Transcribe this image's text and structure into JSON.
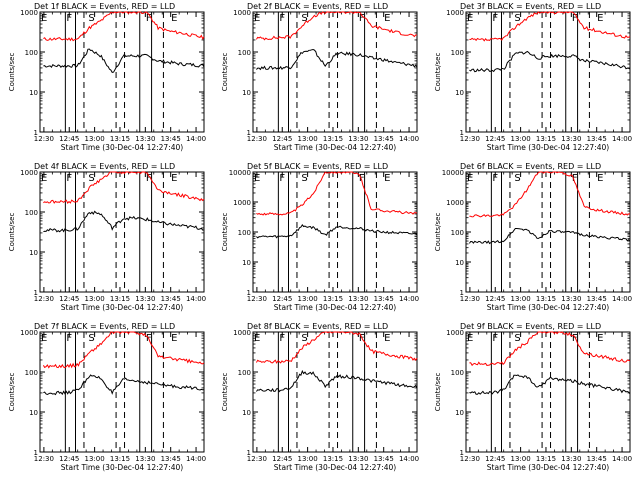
{
  "chart_data": {
    "type": "line",
    "y_scale": "log",
    "ylim": [
      1,
      1000
    ],
    "yticks": [
      1,
      10,
      100,
      1000
    ],
    "ytick_labels": [
      "1",
      "10",
      "100",
      "1000"
    ],
    "xlabel": "Start Time (30-Dec-04 12:27:40)",
    "ylabel": "Counts/sec",
    "xticks": [
      "12:30",
      "12:45",
      "13:00",
      "13:15",
      "13:30",
      "13:45",
      "14:00"
    ],
    "xlim_minutes": [
      0,
      97
    ],
    "colors": {
      "events": "#000000",
      "lld": "#ff0000"
    },
    "panels": [
      {
        "title": "Det 1f BLACK = Events, RED = LLD",
        "ymax": 1000,
        "events": [
          45,
          45,
          45,
          45,
          120,
          80,
          30,
          80,
          80,
          80,
          60,
          55,
          50,
          48,
          45
        ],
        "lld": [
          210,
          210,
          210,
          210,
          400,
          600,
          1000,
          1000,
          1000,
          1000,
          400,
          330,
          300,
          260,
          230
        ],
        "markers": [
          {
            "label": "E",
            "x": 0
          },
          {
            "label": "F",
            "x": 15
          },
          {
            "label": "S",
            "x": 28
          },
          {
            "label": "F",
            "x": 62
          },
          {
            "label": "E",
            "x": 77
          }
        ],
        "solid_lines": [
          15,
          21,
          59,
          66
        ],
        "dashed_lines": [
          26,
          45,
          50,
          73
        ]
      },
      {
        "title": "Det 2f BLACK = Events, RED = LLD",
        "ymax": 1000,
        "events": [
          40,
          40,
          40,
          42,
          100,
          110,
          45,
          90,
          90,
          85,
          70,
          65,
          55,
          50,
          45
        ],
        "lld": [
          220,
          220,
          230,
          240,
          450,
          800,
          1000,
          1000,
          1000,
          1000,
          450,
          380,
          320,
          280,
          250
        ],
        "markers": [
          {
            "label": "E",
            "x": 0
          },
          {
            "label": "F",
            "x": 15
          },
          {
            "label": "S",
            "x": 28
          },
          {
            "label": "F",
            "x": 62
          },
          {
            "label": "E",
            "x": 77
          }
        ],
        "solid_lines": [
          15,
          21,
          59,
          66
        ],
        "dashed_lines": [
          26,
          45,
          50,
          73
        ]
      },
      {
        "title": "Det 3f BLACK = Events, RED = LLD",
        "ymax": 1000,
        "events": [
          35,
          35,
          35,
          38,
          90,
          100,
          70,
          80,
          80,
          80,
          60,
          55,
          50,
          45,
          40
        ],
        "lld": [
          200,
          200,
          200,
          220,
          420,
          700,
          1000,
          1000,
          1000,
          1000,
          400,
          350,
          300,
          260,
          230
        ],
        "markers": [
          {
            "label": "E",
            "x": 0
          },
          {
            "label": "F",
            "x": 15
          },
          {
            "label": "S",
            "x": 28
          },
          {
            "label": "F",
            "x": 62
          },
          {
            "label": "E",
            "x": 77
          }
        ],
        "solid_lines": [
          15,
          21,
          59,
          66
        ],
        "dashed_lines": [
          26,
          45,
          50,
          73
        ]
      },
      {
        "title": "Det 4f BLACK = Events, RED = LLD",
        "ymax": 1000,
        "events": [
          35,
          35,
          35,
          38,
          100,
          90,
          40,
          70,
          70,
          65,
          55,
          50,
          45,
          42,
          38
        ],
        "lld": [
          180,
          180,
          180,
          190,
          400,
          650,
          1000,
          1000,
          1000,
          1000,
          350,
          300,
          260,
          230,
          200
        ],
        "markers": [
          {
            "label": "E",
            "x": 0
          },
          {
            "label": "F",
            "x": 15
          },
          {
            "label": "S",
            "x": 28
          },
          {
            "label": "F",
            "x": 62
          },
          {
            "label": "E",
            "x": 77
          }
        ],
        "solid_lines": [
          15,
          21,
          59,
          66
        ],
        "dashed_lines": [
          26,
          45,
          50,
          73
        ]
      },
      {
        "title": "Det 5f BLACK = Events, RED = LLD",
        "ymax": 10000,
        "events": [
          70,
          70,
          70,
          75,
          160,
          140,
          80,
          150,
          140,
          130,
          110,
          100,
          95,
          90,
          85
        ],
        "lld": [
          400,
          400,
          400,
          420,
          800,
          2000,
          10000,
          10000,
          10000,
          8000,
          600,
          520,
          480,
          440,
          400
        ],
        "markers": [
          {
            "label": "E",
            "x": 0
          },
          {
            "label": "F",
            "x": 15
          },
          {
            "label": "S",
            "x": 28
          },
          {
            "label": "F",
            "x": 62
          },
          {
            "label": "E",
            "x": 77
          }
        ],
        "solid_lines": [
          15,
          21,
          59,
          66
        ],
        "dashed_lines": [
          26,
          45,
          50,
          73
        ]
      },
      {
        "title": "Det 6f BLACK = Events, RED = LLD",
        "ymax": 10000,
        "events": [
          45,
          45,
          45,
          50,
          130,
          120,
          60,
          110,
          100,
          95,
          80,
          70,
          65,
          60,
          55
        ],
        "lld": [
          350,
          350,
          350,
          380,
          800,
          2500,
          10000,
          10000,
          10000,
          7000,
          700,
          550,
          480,
          430,
          380
        ],
        "markers": [
          {
            "label": "E",
            "x": 0
          },
          {
            "label": "F",
            "x": 15
          },
          {
            "label": "S",
            "x": 28
          },
          {
            "label": "F",
            "x": 62
          },
          {
            "label": "E",
            "x": 77
          }
        ],
        "solid_lines": [
          15,
          21,
          59,
          66
        ],
        "dashed_lines": [
          26,
          45,
          50,
          73
        ]
      },
      {
        "title": "Det 7f BLACK = Events, RED = LLD",
        "ymax": 1000,
        "events": [
          30,
          30,
          30,
          35,
          80,
          70,
          30,
          65,
          60,
          55,
          50,
          45,
          42,
          40,
          38
        ],
        "lld": [
          140,
          140,
          140,
          150,
          300,
          500,
          1000,
          1000,
          1000,
          800,
          250,
          220,
          200,
          180,
          160
        ],
        "markers": [
          {
            "label": "E",
            "x": 0
          },
          {
            "label": "F",
            "x": 15
          },
          {
            "label": "S",
            "x": 28
          },
          {
            "label": "F",
            "x": 62
          },
          {
            "label": "E",
            "x": 77
          }
        ],
        "solid_lines": [
          15,
          21,
          59,
          66
        ],
        "dashed_lines": [
          26,
          45,
          50,
          73
        ]
      },
      {
        "title": "Det 8f BLACK = Events, RED = LLD",
        "ymax": 1000,
        "events": [
          35,
          35,
          35,
          40,
          100,
          90,
          45,
          80,
          75,
          70,
          60,
          55,
          50,
          45,
          42
        ],
        "lld": [
          180,
          180,
          180,
          190,
          400,
          650,
          1000,
          1000,
          1000,
          900,
          330,
          290,
          260,
          230,
          210
        ],
        "markers": [
          {
            "label": "E",
            "x": 0
          },
          {
            "label": "F",
            "x": 15
          },
          {
            "label": "S",
            "x": 28
          },
          {
            "label": "F",
            "x": 62
          },
          {
            "label": "E",
            "x": 77
          }
        ],
        "solid_lines": [
          15,
          21,
          59,
          66
        ],
        "dashed_lines": [
          26,
          45,
          50,
          73
        ]
      },
      {
        "title": "Det 9f BLACK = Events, RED = LLD",
        "ymax": 1000,
        "events": [
          30,
          30,
          30,
          35,
          85,
          75,
          40,
          70,
          65,
          60,
          50,
          45,
          40,
          35,
          30
        ],
        "lld": [
          160,
          160,
          160,
          170,
          350,
          550,
          1000,
          1000,
          1000,
          850,
          300,
          260,
          230,
          200,
          180
        ],
        "markers": [
          {
            "label": "E",
            "x": 0
          },
          {
            "label": "F",
            "x": 15
          },
          {
            "label": "S",
            "x": 28
          },
          {
            "label": "F",
            "x": 62
          },
          {
            "label": "E",
            "x": 77
          }
        ],
        "solid_lines": [
          15,
          21,
          59,
          66
        ],
        "dashed_lines": [
          26,
          45,
          50,
          73
        ]
      }
    ]
  }
}
